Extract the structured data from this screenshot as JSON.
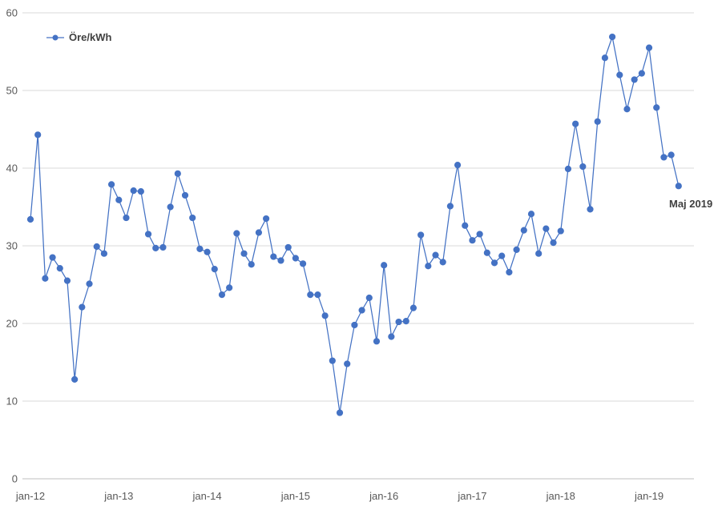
{
  "chart_data": {
    "type": "line",
    "title": "",
    "xlabel": "",
    "ylabel": "",
    "ylim": [
      0,
      60
    ],
    "yticks": [
      0,
      10,
      20,
      30,
      40,
      50,
      60
    ],
    "grid": true,
    "legend_position": "top-left",
    "line_color": "#4472C4",
    "x_tick_labels": [
      "jan-12",
      "jan-13",
      "jan-14",
      "jan-15",
      "jan-16",
      "jan-17",
      "jan-18",
      "jan-19"
    ],
    "series": [
      {
        "name": "Öre/kWh",
        "start": "2012-01",
        "end": "2019-05",
        "values": [
          33.4,
          44.3,
          25.8,
          28.5,
          27.1,
          25.5,
          12.8,
          22.1,
          25.1,
          29.9,
          29.0,
          37.9,
          35.9,
          33.6,
          37.1,
          37.0,
          31.5,
          29.7,
          29.8,
          35.0,
          39.3,
          36.5,
          33.6,
          29.6,
          29.2,
          27.0,
          23.7,
          24.6,
          31.6,
          29.0,
          27.6,
          31.7,
          33.5,
          28.6,
          28.1,
          29.8,
          28.4,
          27.7,
          23.7,
          23.7,
          21.0,
          15.2,
          8.5,
          14.8,
          19.8,
          21.7,
          23.3,
          17.7,
          27.5,
          18.3,
          20.2,
          20.3,
          22.0,
          31.4,
          27.4,
          28.8,
          27.9,
          35.1,
          40.4,
          32.6,
          30.7,
          31.5,
          29.1,
          27.8,
          28.7,
          26.6,
          29.5,
          32.0,
          34.1,
          29.0,
          32.2,
          30.4,
          31.9,
          39.9,
          45.7,
          40.2,
          34.7,
          46.0,
          54.2,
          56.9,
          52.0,
          47.6,
          51.4,
          52.2,
          55.5,
          47.8,
          41.4,
          41.7,
          37.7
        ]
      }
    ],
    "annotation": "Maj 2019"
  }
}
